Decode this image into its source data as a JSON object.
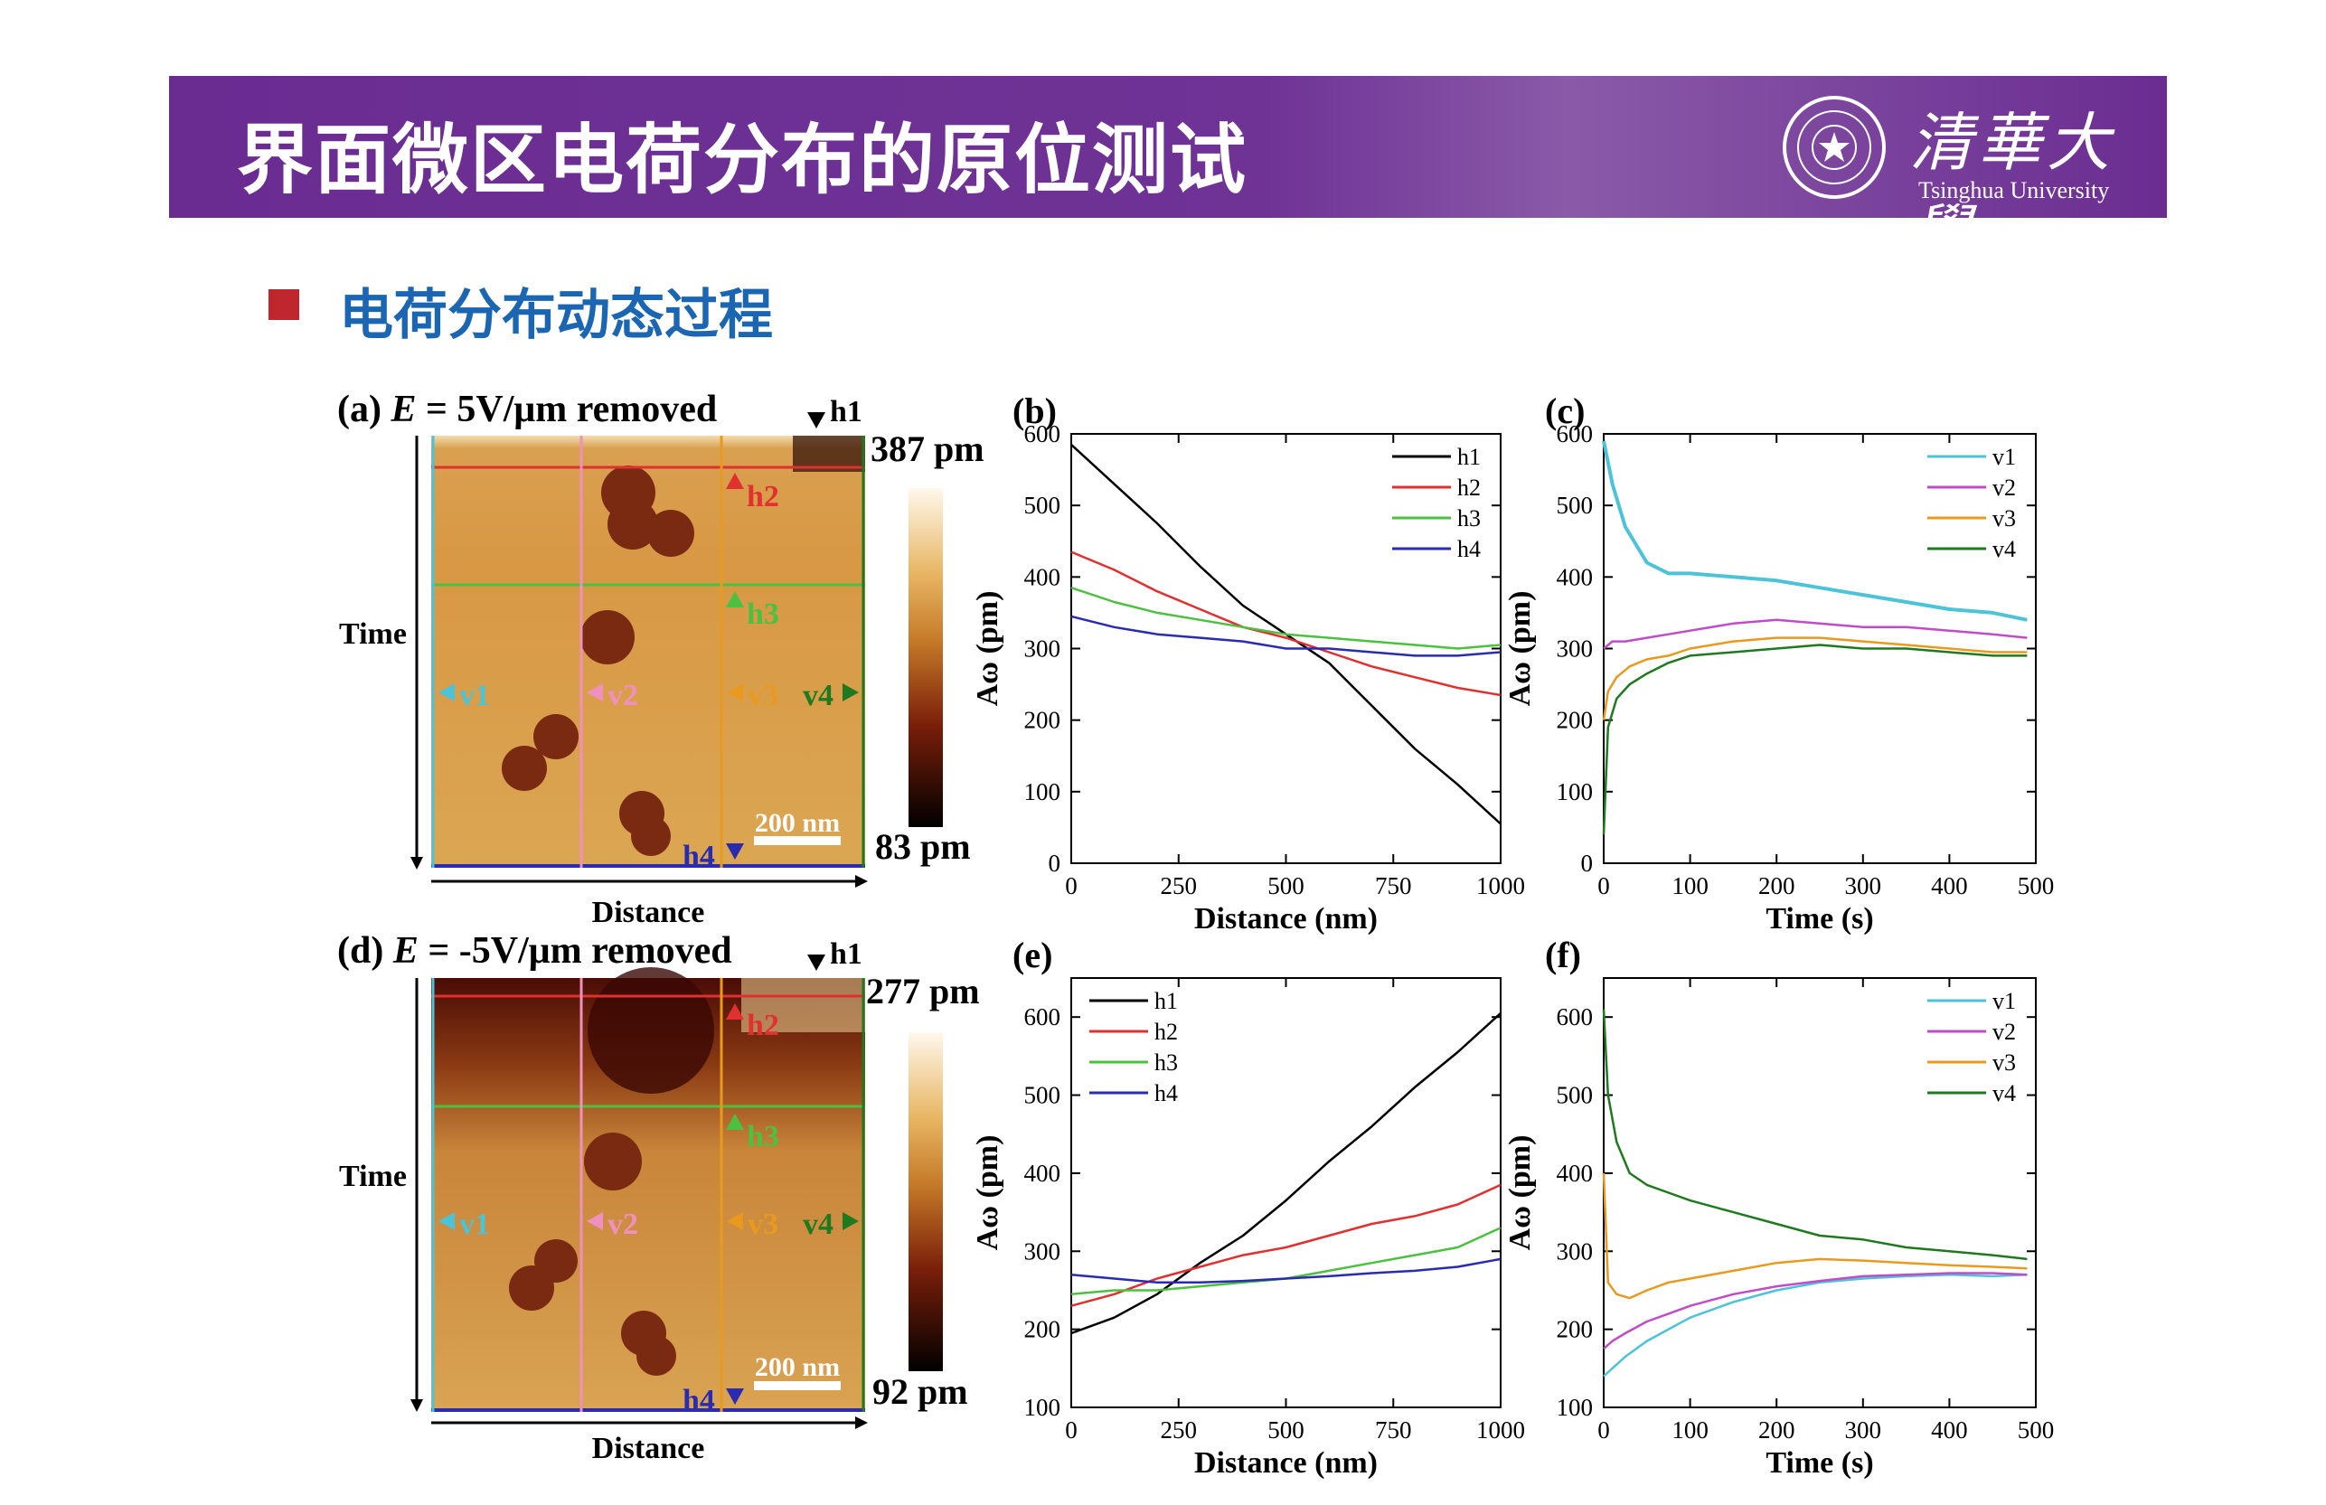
{
  "header": {
    "title": "界面微区电荷分布的原位测试",
    "university_cn": "清華大學",
    "university_en": "Tsinghua University"
  },
  "section": {
    "title": "电荷分布动态过程"
  },
  "colors": {
    "banner": "#6a2c91",
    "subtitle": "#1a66b3",
    "bullet": "#c0262d",
    "h1": "#000000",
    "h2": "#e03030",
    "h3": "#4cc040",
    "h4": "#2b2bb0",
    "v1": "#4cc3d6",
    "v2": "#c04cc8",
    "v3": "#e89a20",
    "v4": "#1f7a1f"
  },
  "maps": [
    {
      "id": "a",
      "label": "(a)",
      "title": "E = 5V/μm removed",
      "title_E": "E",
      "title_rest": " = 5V/μm removed",
      "max_label": "387 pm",
      "min_label": "83 pm",
      "scalebar": "200 nm",
      "xlabel": "Distance",
      "ylabel": "Time",
      "markers": [
        "h1",
        "h2",
        "h3",
        "h4",
        "v1",
        "v2",
        "v3",
        "v4"
      ]
    },
    {
      "id": "d",
      "label": "(d)",
      "title": "E = -5V/μm removed",
      "title_E": "E",
      "title_rest": " = -5V/μm removed",
      "max_label": "277 pm",
      "min_label": "92 pm",
      "scalebar": "200 nm",
      "xlabel": "Distance",
      "ylabel": "Time",
      "markers": [
        "h1",
        "h2",
        "h3",
        "h4",
        "v1",
        "v2",
        "v3",
        "v4"
      ]
    }
  ],
  "chart_data": [
    {
      "id": "b",
      "label": "(b)",
      "type": "line",
      "xlabel": "Distance (nm)",
      "ylabel": "Aω (pm)",
      "xlim": [
        0,
        1000
      ],
      "ylim": [
        0,
        600
      ],
      "xticks": [
        0,
        250,
        500,
        750,
        1000
      ],
      "yticks": [
        0,
        100,
        200,
        300,
        400,
        500,
        600
      ],
      "legend_position": "top-right",
      "series": [
        {
          "name": "h1",
          "color": "#000000",
          "x": [
            0,
            100,
            200,
            300,
            400,
            500,
            600,
            700,
            800,
            900,
            1000
          ],
          "y": [
            585,
            530,
            475,
            415,
            360,
            320,
            280,
            220,
            160,
            110,
            55
          ]
        },
        {
          "name": "h2",
          "color": "#e03030",
          "x": [
            0,
            100,
            200,
            300,
            400,
            500,
            600,
            700,
            800,
            900,
            1000
          ],
          "y": [
            435,
            410,
            380,
            355,
            330,
            315,
            295,
            275,
            260,
            245,
            235
          ]
        },
        {
          "name": "h3",
          "color": "#4cc040",
          "x": [
            0,
            100,
            200,
            300,
            400,
            500,
            600,
            700,
            800,
            900,
            1000
          ],
          "y": [
            385,
            365,
            350,
            340,
            330,
            320,
            315,
            310,
            305,
            300,
            305
          ]
        },
        {
          "name": "h4",
          "color": "#2b2bb0",
          "x": [
            0,
            100,
            200,
            300,
            400,
            500,
            600,
            700,
            800,
            900,
            1000
          ],
          "y": [
            345,
            330,
            320,
            315,
            310,
            300,
            300,
            295,
            290,
            290,
            295
          ]
        }
      ]
    },
    {
      "id": "c",
      "label": "(c)",
      "type": "line",
      "xlabel": "Time (s)",
      "ylabel": "Aω (pm)",
      "xlim": [
        0,
        500
      ],
      "ylim": [
        0,
        600
      ],
      "xticks": [
        0,
        100,
        200,
        300,
        400,
        500
      ],
      "yticks": [
        0,
        100,
        200,
        300,
        400,
        500,
        600
      ],
      "legend_position": "top-right",
      "series": [
        {
          "name": "v1",
          "color": "#4cc3d6",
          "x": [
            0,
            10,
            25,
            50,
            75,
            100,
            150,
            200,
            250,
            300,
            350,
            400,
            450,
            490
          ],
          "y": [
            590,
            530,
            470,
            420,
            405,
            405,
            400,
            395,
            385,
            375,
            365,
            355,
            350,
            340
          ]
        },
        {
          "name": "v2",
          "color": "#c04cc8",
          "x": [
            0,
            10,
            25,
            50,
            75,
            100,
            150,
            200,
            250,
            300,
            350,
            400,
            450,
            490
          ],
          "y": [
            300,
            310,
            310,
            315,
            320,
            325,
            335,
            340,
            335,
            330,
            330,
            325,
            320,
            315
          ]
        },
        {
          "name": "v3",
          "color": "#e89a20",
          "x": [
            0,
            5,
            15,
            30,
            50,
            75,
            100,
            150,
            200,
            250,
            300,
            350,
            400,
            450,
            490
          ],
          "y": [
            200,
            240,
            260,
            275,
            285,
            290,
            300,
            310,
            315,
            315,
            310,
            305,
            300,
            295,
            295
          ]
        },
        {
          "name": "v4",
          "color": "#1f7a1f",
          "x": [
            0,
            5,
            15,
            30,
            50,
            75,
            100,
            150,
            200,
            250,
            300,
            350,
            400,
            450,
            490
          ],
          "y": [
            40,
            190,
            230,
            250,
            265,
            280,
            290,
            295,
            300,
            305,
            300,
            300,
            295,
            290,
            290
          ]
        }
      ]
    },
    {
      "id": "e",
      "label": "(e)",
      "type": "line",
      "xlabel": "Distance (nm)",
      "ylabel": "Aω (pm)",
      "xlim": [
        0,
        1000
      ],
      "ylim": [
        100,
        650
      ],
      "xticks": [
        0,
        250,
        500,
        750,
        1000
      ],
      "yticks": [
        100,
        200,
        300,
        400,
        500,
        600
      ],
      "legend_position": "top-left",
      "series": [
        {
          "name": "h1",
          "color": "#000000",
          "x": [
            0,
            100,
            200,
            300,
            400,
            500,
            600,
            700,
            800,
            900,
            1000
          ],
          "y": [
            195,
            215,
            245,
            285,
            320,
            365,
            415,
            460,
            510,
            555,
            605
          ]
        },
        {
          "name": "h2",
          "color": "#e03030",
          "x": [
            0,
            100,
            200,
            300,
            400,
            500,
            600,
            700,
            800,
            900,
            1000
          ],
          "y": [
            230,
            245,
            265,
            280,
            295,
            305,
            320,
            335,
            345,
            360,
            385
          ]
        },
        {
          "name": "h3",
          "color": "#4cc040",
          "x": [
            0,
            100,
            200,
            300,
            400,
            500,
            600,
            700,
            800,
            900,
            1000
          ],
          "y": [
            245,
            250,
            250,
            255,
            260,
            265,
            275,
            285,
            295,
            305,
            330
          ]
        },
        {
          "name": "h4",
          "color": "#2b2bb0",
          "x": [
            0,
            100,
            200,
            300,
            400,
            500,
            600,
            700,
            800,
            900,
            1000
          ],
          "y": [
            270,
            265,
            260,
            260,
            262,
            265,
            268,
            272,
            275,
            280,
            290
          ]
        }
      ]
    },
    {
      "id": "f",
      "label": "(f)",
      "type": "line",
      "xlabel": "Time (s)",
      "ylabel": "Aω (pm)",
      "xlim": [
        0,
        500
      ],
      "ylim": [
        100,
        650
      ],
      "xticks": [
        0,
        100,
        200,
        300,
        400,
        500
      ],
      "yticks": [
        100,
        200,
        300,
        400,
        500,
        600
      ],
      "legend_position": "top-right",
      "series": [
        {
          "name": "v1",
          "color": "#4cc3d6",
          "x": [
            0,
            10,
            25,
            50,
            75,
            100,
            150,
            200,
            250,
            300,
            350,
            400,
            450,
            490
          ],
          "y": [
            140,
            150,
            165,
            185,
            200,
            215,
            235,
            250,
            260,
            265,
            268,
            270,
            268,
            270
          ]
        },
        {
          "name": "v2",
          "color": "#c04cc8",
          "x": [
            0,
            10,
            25,
            50,
            75,
            100,
            150,
            200,
            250,
            300,
            350,
            400,
            450,
            490
          ],
          "y": [
            175,
            185,
            195,
            210,
            220,
            230,
            245,
            255,
            262,
            268,
            270,
            272,
            272,
            270
          ]
        },
        {
          "name": "v3",
          "color": "#e89a20",
          "x": [
            0,
            5,
            15,
            30,
            50,
            75,
            100,
            150,
            200,
            250,
            300,
            350,
            400,
            450,
            490
          ],
          "y": [
            400,
            260,
            245,
            240,
            250,
            260,
            265,
            275,
            285,
            290,
            288,
            285,
            282,
            280,
            278
          ]
        },
        {
          "name": "v4",
          "color": "#1f7a1f",
          "x": [
            0,
            5,
            15,
            30,
            50,
            75,
            100,
            150,
            200,
            250,
            300,
            350,
            400,
            450,
            490
          ],
          "y": [
            610,
            500,
            440,
            400,
            385,
            375,
            365,
            350,
            335,
            320,
            315,
            305,
            300,
            295,
            290
          ]
        }
      ]
    }
  ]
}
